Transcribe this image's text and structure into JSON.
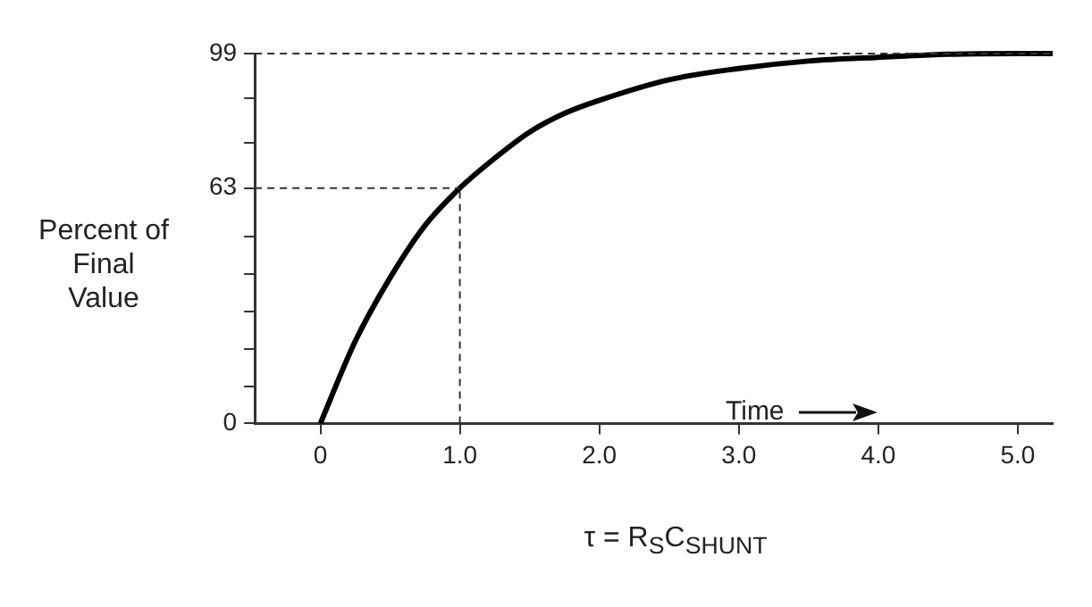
{
  "chart_data": {
    "type": "line",
    "xlabel": "τ = R$_{S}$C$_{SHUNT}$",
    "ylabel": "Percent of Final Value",
    "x": [
      0,
      0.25,
      0.5,
      0.75,
      1,
      1.25,
      1.5,
      1.75,
      2,
      2.5,
      3,
      3.5,
      4,
      4.5,
      5,
      5.25
    ],
    "series": [
      {
        "color": "#000000",
        "values": [
          0,
          22,
          39,
          53,
          63,
          71,
          78,
          83,
          86.5,
          92,
          95,
          97,
          98,
          98.8,
          99,
          99
        ]
      }
    ],
    "xlim": [
      -0.47,
      5.25
    ],
    "xticks": [
      0,
      {
        "value": 1,
        "label": "1.0"
      },
      {
        "value": 2,
        "label": "2.0"
      },
      {
        "value": 3,
        "label": "3.0"
      },
      {
        "value": 4,
        "label": "4.0"
      },
      {
        "value": 5,
        "label": "5.0"
      }
    ],
    "ylim": [
      0,
      99
    ],
    "yticks": [
      0,
      {
        "value": 10,
        "label": null
      },
      {
        "value": 20,
        "label": null
      },
      {
        "value": 30,
        "label": null
      },
      {
        "value": 40,
        "label": null
      },
      {
        "value": 50,
        "label": null
      },
      63,
      {
        "value": 75,
        "label": null
      },
      {
        "value": 87,
        "label": null
      },
      99
    ],
    "ref_lines": [
      {
        "axis": "y",
        "value": 99,
        "line_style": "dashed"
      },
      {
        "axis": "y",
        "value": 63,
        "line_style": "dashed"
      },
      {
        "axis": "x",
        "value": 1,
        "line_style": "dashed"
      }
    ],
    "annotations": [
      "Time"
    ],
    "grid": false,
    "legend": false,
    "marker": "none",
    "line_style": "solid"
  }
}
